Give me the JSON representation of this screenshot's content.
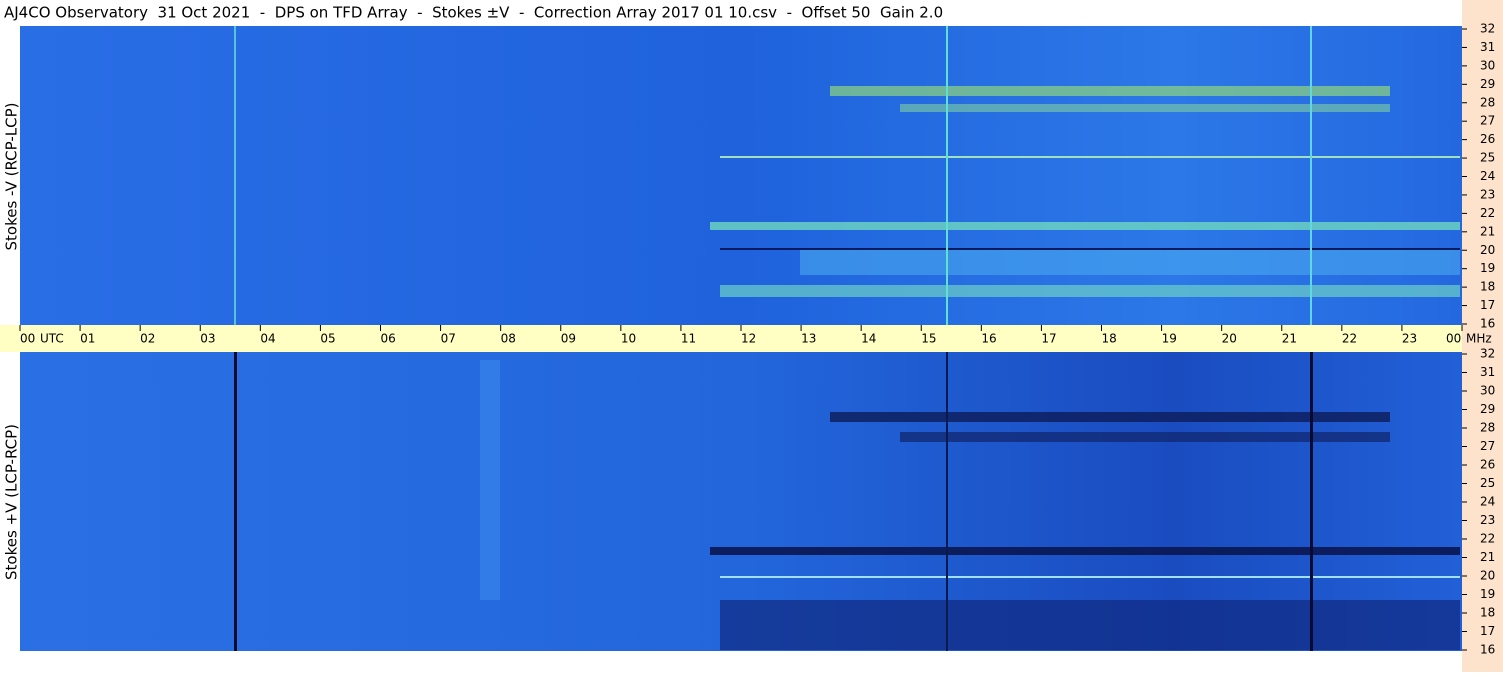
{
  "chart_data": {
    "type": "spectrogram",
    "title": "AJ4CO Observatory  31 Oct 2021  -  DPS on TFD Array  -  Stokes ±V  -  Correction Array 2017 01 10.csv  -  Offset 50  Gain 2.0",
    "panels": [
      {
        "ylabel": "Stokes -V (RCP-LCP)"
      },
      {
        "ylabel": "Stokes +V (LCP-RCP)"
      }
    ],
    "xlabel": "UTC",
    "xlim": [
      0,
      24
    ],
    "xticks": [
      {
        "value": 0,
        "label": "00"
      },
      {
        "value": 1,
        "label": "01"
      },
      {
        "value": 2,
        "label": "02"
      },
      {
        "value": 3,
        "label": "03"
      },
      {
        "value": 4,
        "label": "04"
      },
      {
        "value": 5,
        "label": "05"
      },
      {
        "value": 6,
        "label": "06"
      },
      {
        "value": 7,
        "label": "07"
      },
      {
        "value": 8,
        "label": "08"
      },
      {
        "value": 9,
        "label": "09"
      },
      {
        "value": 10,
        "label": "10"
      },
      {
        "value": 11,
        "label": "11"
      },
      {
        "value": 12,
        "label": "12"
      },
      {
        "value": 13,
        "label": "13"
      },
      {
        "value": 14,
        "label": "14"
      },
      {
        "value": 15,
        "label": "15"
      },
      {
        "value": 16,
        "label": "16"
      },
      {
        "value": 17,
        "label": "17"
      },
      {
        "value": 18,
        "label": "18"
      },
      {
        "value": 19,
        "label": "19"
      },
      {
        "value": 20,
        "label": "20"
      },
      {
        "value": 21,
        "label": "21"
      },
      {
        "value": 22,
        "label": "22"
      },
      {
        "value": 23,
        "label": "23"
      },
      {
        "value": 24,
        "label": "00"
      }
    ],
    "yunit": "MHz",
    "ylim": [
      16,
      32
    ],
    "yticks": [
      16,
      17,
      18,
      19,
      20,
      21,
      22,
      23,
      24,
      25,
      26,
      27,
      28,
      29,
      30,
      31,
      32
    ]
  }
}
